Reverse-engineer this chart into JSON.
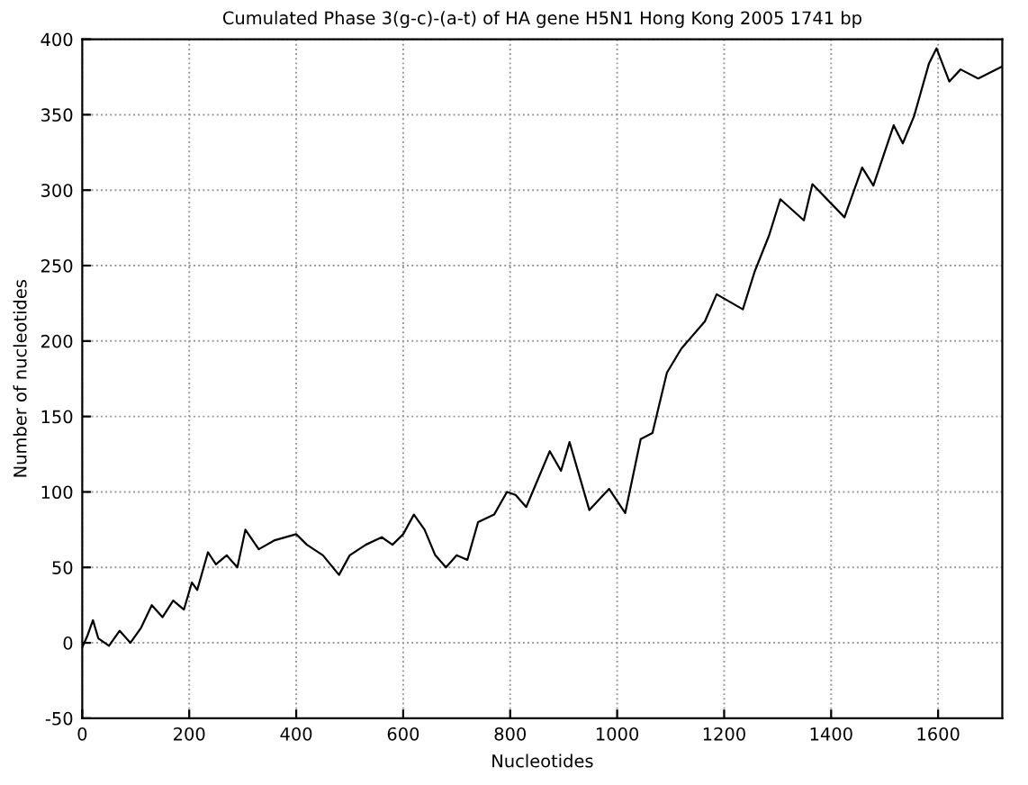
{
  "chart_data": {
    "type": "line",
    "title": "Cumulated Phase 3(g-c)-(a-t) of HA gene H5N1 Hong Kong 2005 1741 bp",
    "xlabel": "Nucleotides",
    "ylabel": "Number of nucleotides",
    "series": [
      {
        "color": "#000000",
        "x": [
          0,
          10,
          20,
          30,
          50,
          70,
          90,
          110,
          130,
          150,
          170,
          190,
          205,
          215,
          235,
          250,
          270,
          290,
          305,
          330,
          360,
          400,
          420,
          450,
          480,
          500,
          530,
          560,
          580,
          600,
          620,
          640,
          660,
          680,
          700,
          720,
          740,
          770,
          794,
          810,
          830,
          874,
          895,
          911,
          948,
          985,
          1015,
          1044,
          1066,
          1093,
          1120,
          1164,
          1186,
          1235,
          1257,
          1284,
          1305,
          1349,
          1365,
          1425,
          1458,
          1479,
          1517,
          1534,
          1555,
          1583,
          1597,
          1621,
          1642,
          1675,
          1720
        ],
        "values": [
          -3,
          5,
          15,
          3,
          -2,
          8,
          0,
          10,
          25,
          17,
          28,
          22,
          40,
          35,
          60,
          52,
          58,
          50,
          75,
          62,
          68,
          72,
          65,
          58,
          45,
          58,
          65,
          70,
          65,
          72,
          85,
          75,
          58,
          50,
          58,
          55,
          80,
          85,
          100,
          98,
          90,
          127,
          114,
          133,
          88,
          102,
          86,
          135,
          139,
          179,
          195,
          213,
          231,
          221,
          246,
          270,
          294,
          280,
          304,
          282,
          315,
          303,
          343,
          331,
          349,
          384,
          394,
          372,
          380,
          374,
          382
        ]
      }
    ],
    "xlim": [
      0,
      1720
    ],
    "ylim": [
      -50,
      400
    ],
    "xticks": [
      0,
      200,
      400,
      600,
      800,
      1000,
      1200,
      1400,
      1600
    ],
    "yticks": [
      -50,
      0,
      50,
      100,
      150,
      200,
      250,
      300,
      350,
      400
    ],
    "grid": true,
    "line_style": "solid",
    "marker": "none"
  }
}
